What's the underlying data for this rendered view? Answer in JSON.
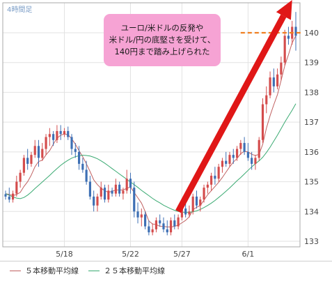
{
  "chart_data": {
    "type": "line",
    "timeframe_label": "4時間足",
    "ylim": [
      132.6,
      141.2
    ],
    "y_ticks": [
      133,
      134,
      135,
      136,
      137,
      138,
      139,
      140
    ],
    "x_ticks": [
      {
        "label": "5/18",
        "index": 16
      },
      {
        "label": "5/22",
        "index": 34
      },
      {
        "label": "5/27",
        "index": 48
      },
      {
        "label": "6/1",
        "index": 66
      }
    ],
    "n_bars": 80,
    "grid": true,
    "candles": [
      [
        134.58,
        134.7,
        134.4,
        134.5
      ],
      [
        134.5,
        134.8,
        134.3,
        134.4
      ],
      [
        134.4,
        134.7,
        134.3,
        134.6
      ],
      [
        134.6,
        135.2,
        134.5,
        135.0
      ],
      [
        135.0,
        135.4,
        134.8,
        135.3
      ],
      [
        135.3,
        135.9,
        135.2,
        135.8
      ],
      [
        135.8,
        136.1,
        135.4,
        135.6
      ],
      [
        135.6,
        136.0,
        135.5,
        135.9
      ],
      [
        135.9,
        136.4,
        135.8,
        136.2
      ],
      [
        136.2,
        136.4,
        135.5,
        135.8
      ],
      [
        135.8,
        136.3,
        135.7,
        136.1
      ],
      [
        136.1,
        136.6,
        135.9,
        136.5
      ],
      [
        136.5,
        136.8,
        136.2,
        136.6
      ],
      [
        136.6,
        136.7,
        136.2,
        136.4
      ],
      [
        136.4,
        136.9,
        136.3,
        136.7
      ],
      [
        136.7,
        136.9,
        136.4,
        136.6
      ],
      [
        136.6,
        136.8,
        136.5,
        136.7
      ],
      [
        136.7,
        136.85,
        136.4,
        136.5
      ],
      [
        136.5,
        136.6,
        135.9,
        136.1
      ],
      [
        136.1,
        136.3,
        135.8,
        136.0
      ],
      [
        136.0,
        136.2,
        135.4,
        135.6
      ],
      [
        135.6,
        135.8,
        135.3,
        135.4
      ],
      [
        135.4,
        135.7,
        134.9,
        135.0
      ],
      [
        135.0,
        135.2,
        134.4,
        134.5
      ],
      [
        134.5,
        134.7,
        134.0,
        134.2
      ],
      [
        134.2,
        134.6,
        134.0,
        134.5
      ],
      [
        134.5,
        135.0,
        134.4,
        134.8
      ],
      [
        134.8,
        134.9,
        134.3,
        134.4
      ],
      [
        134.4,
        134.9,
        134.3,
        134.7
      ],
      [
        134.7,
        134.8,
        134.5,
        134.6
      ],
      [
        134.6,
        135.1,
        134.5,
        134.9
      ],
      [
        134.9,
        135.0,
        134.5,
        134.6
      ],
      [
        134.6,
        134.8,
        134.4,
        134.7
      ],
      [
        134.7,
        135.4,
        134.6,
        135.1
      ],
      [
        135.1,
        135.3,
        134.6,
        134.8
      ],
      [
        134.8,
        135.0,
        133.8,
        134.0
      ],
      [
        134.0,
        134.3,
        133.6,
        133.8
      ],
      [
        133.8,
        134.1,
        133.5,
        133.9
      ],
      [
        133.9,
        134.0,
        133.4,
        133.5
      ],
      [
        133.5,
        133.7,
        133.2,
        133.3
      ],
      [
        133.3,
        133.6,
        133.2,
        133.4
      ],
      [
        133.4,
        133.8,
        133.3,
        133.7
      ],
      [
        133.7,
        133.9,
        133.5,
        133.6
      ],
      [
        133.6,
        133.8,
        133.3,
        133.4
      ],
      [
        133.4,
        133.7,
        133.2,
        133.3
      ],
      [
        133.3,
        133.8,
        133.2,
        133.7
      ],
      [
        133.7,
        133.9,
        133.4,
        133.5
      ],
      [
        133.5,
        133.9,
        133.4,
        133.8
      ],
      [
        133.8,
        134.2,
        133.7,
        134.1
      ],
      [
        134.1,
        134.3,
        133.8,
        133.9
      ],
      [
        133.9,
        134.2,
        133.8,
        134.0
      ],
      [
        134.0,
        134.6,
        133.9,
        134.5
      ],
      [
        134.5,
        134.7,
        134.1,
        134.2
      ],
      [
        134.2,
        134.5,
        134.0,
        134.4
      ],
      [
        134.4,
        134.9,
        134.3,
        134.8
      ],
      [
        134.8,
        135.0,
        134.6,
        134.9
      ],
      [
        134.9,
        135.3,
        134.7,
        135.2
      ],
      [
        135.2,
        135.5,
        134.9,
        135.1
      ],
      [
        135.1,
        135.6,
        135.0,
        135.5
      ],
      [
        135.5,
        135.8,
        135.3,
        135.7
      ],
      [
        135.7,
        136.0,
        135.5,
        135.6
      ],
      [
        135.6,
        136.0,
        135.5,
        135.9
      ],
      [
        135.9,
        136.1,
        135.6,
        135.8
      ],
      [
        135.8,
        136.2,
        135.7,
        136.1
      ],
      [
        136.1,
        136.4,
        135.9,
        136.3
      ],
      [
        136.3,
        136.5,
        135.9,
        136.0
      ],
      [
        136.0,
        136.3,
        135.7,
        135.8
      ],
      [
        135.8,
        136.0,
        135.4,
        135.6
      ],
      [
        135.6,
        135.9,
        135.4,
        135.8
      ],
      [
        135.8,
        136.5,
        135.7,
        136.4
      ],
      [
        136.4,
        137.8,
        136.3,
        137.6
      ],
      [
        137.6,
        138.2,
        137.3,
        137.9
      ],
      [
        137.9,
        138.7,
        137.8,
        138.5
      ],
      [
        138.5,
        138.8,
        138.0,
        138.2
      ],
      [
        138.2,
        138.8,
        138.1,
        138.6
      ],
      [
        138.6,
        139.2,
        138.4,
        139.0
      ],
      [
        139.0,
        140.1,
        138.9,
        139.9
      ],
      [
        139.9,
        140.2,
        139.6,
        139.8
      ],
      [
        139.8,
        140.4,
        139.6,
        140.2
      ],
      [
        140.2,
        140.7,
        139.4,
        139.9
      ]
    ],
    "series": [
      {
        "name": "５本移動平均線",
        "color": "#c06060",
        "values": [
          134.6,
          134.57,
          134.53,
          134.57,
          134.64,
          134.84,
          135.0,
          135.22,
          135.5,
          135.68,
          135.72,
          135.9,
          136.04,
          136.26,
          136.46,
          136.56,
          136.6,
          136.58,
          136.44,
          136.26,
          136.04,
          135.84,
          135.6,
          135.34,
          135.06,
          134.9,
          134.78,
          134.7,
          134.64,
          134.68,
          134.72,
          134.72,
          134.72,
          134.78,
          134.82,
          134.64,
          134.46,
          134.28,
          134.0,
          133.68,
          133.58,
          133.56,
          133.5,
          133.5,
          133.48,
          133.48,
          133.5,
          133.54,
          133.62,
          133.7,
          133.82,
          134.06,
          134.14,
          134.2,
          134.38,
          134.56,
          134.7,
          134.84,
          134.98,
          135.14,
          135.32,
          135.5,
          135.66,
          135.78,
          135.94,
          136.02,
          136.0,
          135.92,
          135.88,
          135.92,
          136.26,
          136.8,
          137.22,
          137.58,
          137.92,
          138.4,
          138.9,
          139.26,
          139.66,
          139.9
        ]
      },
      {
        "name": "２５本移動平均線",
        "color": "#3aaa72",
        "values": [
          134.6,
          134.54,
          134.49,
          134.45,
          134.43,
          134.47,
          134.55,
          134.65,
          134.77,
          134.88,
          134.99,
          135.1,
          135.21,
          135.33,
          135.44,
          135.55,
          135.64,
          135.72,
          135.79,
          135.84,
          135.87,
          135.89,
          135.88,
          135.86,
          135.82,
          135.77,
          135.7,
          135.62,
          135.53,
          135.44,
          135.35,
          135.26,
          135.17,
          135.08,
          134.99,
          134.9,
          134.81,
          134.71,
          134.62,
          134.53,
          134.44,
          134.36,
          134.29,
          134.21,
          134.15,
          134.09,
          134.04,
          134.0,
          133.98,
          133.97,
          133.97,
          133.99,
          134.02,
          134.07,
          134.13,
          134.2,
          134.28,
          134.37,
          134.47,
          134.57,
          134.68,
          134.79,
          134.91,
          135.03,
          135.14,
          135.26,
          135.38,
          135.5,
          135.6,
          135.7,
          135.82,
          135.98,
          136.16,
          136.36,
          136.56,
          136.78,
          137.0,
          137.2,
          137.4,
          137.62
        ]
      }
    ],
    "annotation": "ユーロ/米ドルの反発や\n米ドル/円の底堅さを受けて、\n140円まで踏み上げられた",
    "level_line": 140,
    "arrow": {
      "from": {
        "index": 47,
        "y": 134.0
      },
      "to": {
        "index": 78,
        "y": 141.1
      }
    }
  },
  "colors": {
    "candle_up": "#d44c4c",
    "candle_down": "#3d6fb4",
    "arrow": "#e01717",
    "level_line": "#f07f22",
    "callout": "#f6a3d4",
    "grid": "#e2e2e2",
    "frame": "#a9a9a9",
    "axis_text": "#444444"
  }
}
